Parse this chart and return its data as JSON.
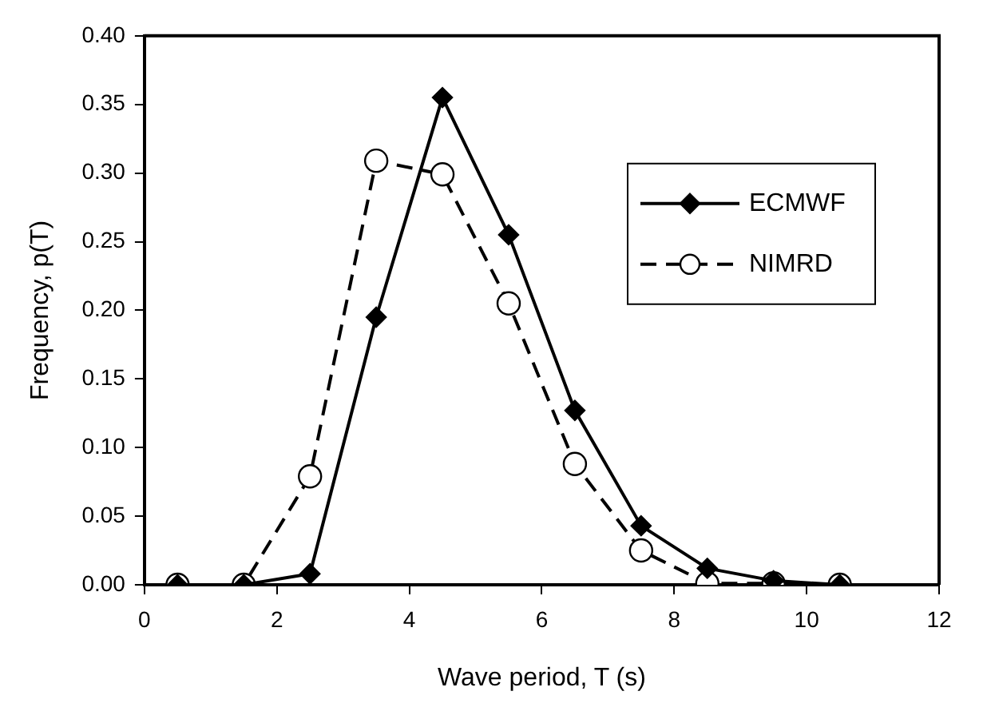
{
  "chart_data": {
    "type": "line",
    "xlabel": "Wave period, T (s)",
    "ylabel": "Frequency, p(T)",
    "x": [
      0.5,
      1.5,
      2.5,
      3.5,
      4.5,
      5.5,
      6.5,
      7.5,
      8.5,
      9.5,
      10.5
    ],
    "series": [
      {
        "name": "ECMWF",
        "color": "#000000",
        "marker": "diamond",
        "line_style": "solid",
        "values": [
          0,
          0,
          0.008,
          0.195,
          0.355,
          0.255,
          0.127,
          0.043,
          0.012,
          0.003,
          0
        ]
      },
      {
        "name": "NIMRD",
        "color": "#000000",
        "marker": "circle",
        "line_style": "dashed",
        "values": [
          0,
          0,
          0.079,
          0.309,
          0.299,
          0.205,
          0.088,
          0.025,
          0.001,
          0.001,
          0
        ]
      }
    ],
    "xlim": [
      0,
      12
    ],
    "xticks": [
      0,
      2,
      4,
      6,
      8,
      10,
      12
    ],
    "ylim": [
      0,
      0.4
    ],
    "yticks": [
      {
        "value": 0,
        "label": "0.00"
      },
      {
        "value": 0.05,
        "label": "0.05"
      },
      {
        "value": 0.1,
        "label": "0.10"
      },
      {
        "value": 0.15,
        "label": "0.15"
      },
      {
        "value": 0.2,
        "label": "0.20"
      },
      {
        "value": 0.25,
        "label": "0.25"
      },
      {
        "value": 0.3,
        "label": "0.30"
      },
      {
        "value": 0.35,
        "label": "0.35"
      },
      {
        "value": 0.4,
        "label": "0.40"
      }
    ],
    "grid": false,
    "legend": "top right"
  }
}
